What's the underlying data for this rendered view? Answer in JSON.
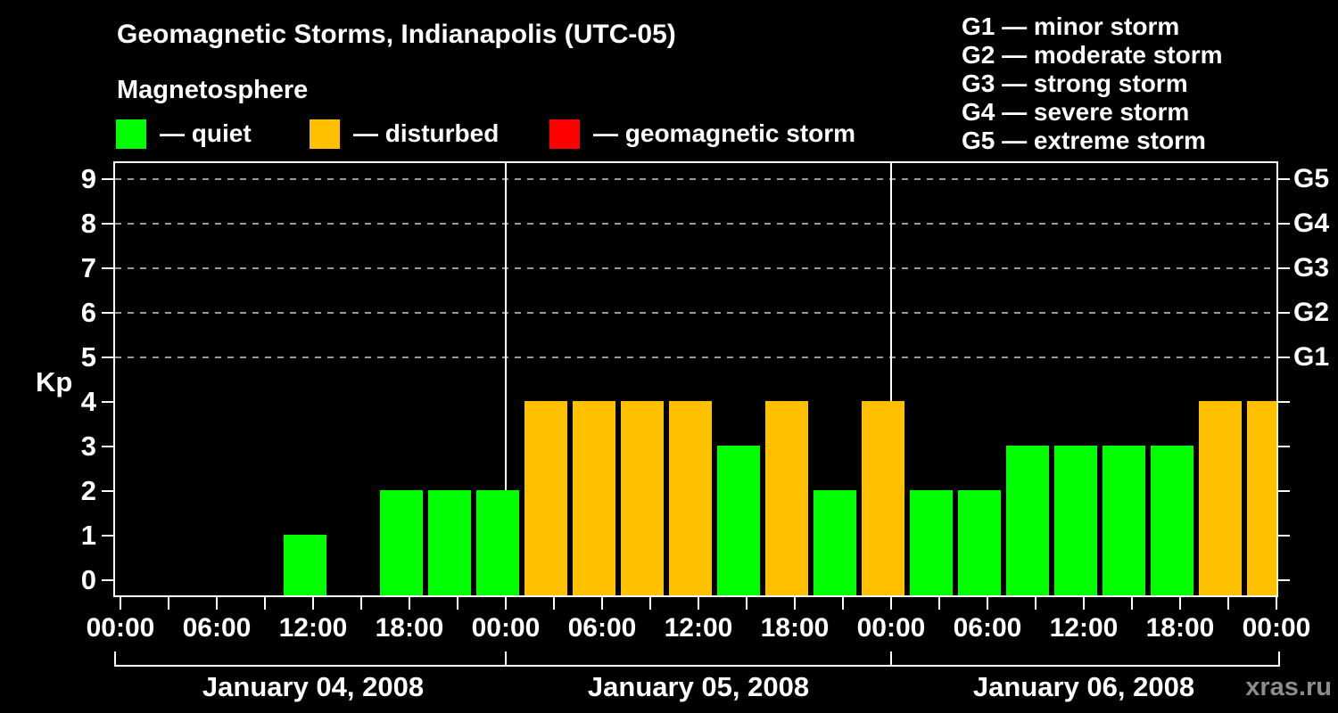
{
  "title": "Geomagnetic Storms, Indianapolis (UTC-05)",
  "subtitle": "Magnetosphere",
  "legend": {
    "items": [
      {
        "key": "quiet",
        "label": "— quiet",
        "color": "#00FF00"
      },
      {
        "key": "disturbed",
        "label": "— disturbed",
        "color": "#FFC000"
      },
      {
        "key": "storm",
        "label": "— geomagnetic storm",
        "color": "#FF0000"
      }
    ]
  },
  "storm_scale_legend": [
    "G1 — minor storm",
    "G2 — moderate storm",
    "G3 — strong storm",
    "G4 — severe storm",
    "G5 — extreme storm"
  ],
  "watermark": "xras.ru",
  "chart_data": {
    "type": "bar",
    "title": "Geomagnetic Storms, Indianapolis (UTC-05)",
    "xlabel": "",
    "ylabel": "Kp",
    "ylim": [
      0,
      9
    ],
    "y_ticks": [
      0,
      1,
      2,
      3,
      4,
      5,
      6,
      7,
      8,
      9
    ],
    "grid_kp_levels": [
      5,
      6,
      7,
      8,
      9
    ],
    "grid_style": "dashed gray, only at Kp 5-9",
    "legend_position": "top",
    "right_axis_labels": [
      {
        "label": "G1",
        "kp": 5
      },
      {
        "label": "G2",
        "kp": 6
      },
      {
        "label": "G3",
        "kp": 7
      },
      {
        "label": "G4",
        "kp": 8
      },
      {
        "label": "G5",
        "kp": 9
      }
    ],
    "x_tick_labels": [
      "00:00",
      "06:00",
      "12:00",
      "18:00",
      "00:00",
      "06:00",
      "12:00",
      "18:00",
      "00:00",
      "06:00",
      "12:00",
      "18:00",
      "00:00"
    ],
    "hours_per_slot": 3,
    "days": [
      {
        "date": "January 04, 2008",
        "kp": [
          0,
          0,
          0,
          1,
          0,
          2,
          2,
          2
        ]
      },
      {
        "date": "January 05, 2008",
        "kp": [
          4,
          4,
          4,
          4,
          3,
          4,
          2,
          4
        ]
      },
      {
        "date": "January 06, 2008",
        "kp": [
          2,
          2,
          3,
          3,
          3,
          3,
          4,
          4
        ]
      }
    ],
    "color_rule": "Kp<=3 quiet green, Kp==4 disturbed orange, Kp>=5 geomagnetic storm red",
    "colors": {
      "quiet": "#00FF00",
      "disturbed": "#FFC000",
      "storm": "#FF0000"
    }
  }
}
